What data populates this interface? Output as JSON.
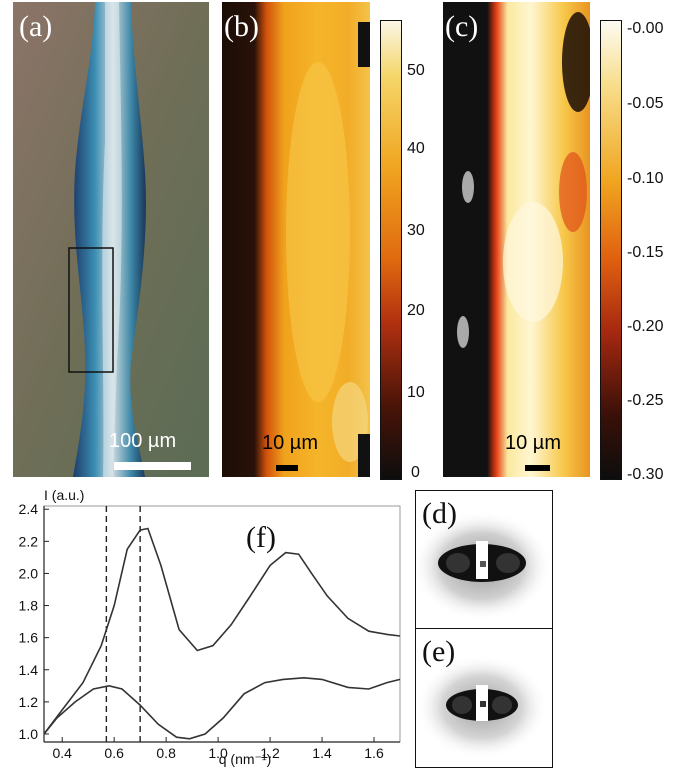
{
  "figure": {
    "panel_a": {
      "letter": "(a)",
      "scale_label": "100 µm"
    },
    "panel_b": {
      "letter": "(b)",
      "scale_label": "10 µm",
      "colorbar_ticks": [
        "50",
        "40",
        "30",
        "20",
        "10",
        "0"
      ]
    },
    "panel_c": {
      "letter": "(c)",
      "scale_label": "10 µm",
      "colorbar_ticks": [
        "-0.00",
        "-0.05",
        "-0.10",
        "-0.15",
        "-0.20",
        "-0.25",
        "-0.30"
      ]
    },
    "panel_d": {
      "letter": "(d)"
    },
    "panel_e": {
      "letter": "(e)"
    },
    "panel_f": {
      "letter": "(f)"
    }
  },
  "chart_data": {
    "type": "line",
    "ylabel": "I (a.u.)",
    "xlabel": "q (nm⁻¹)",
    "xlim": [
      0.33,
      1.7
    ],
    "ylim": [
      0.95,
      2.42
    ],
    "xticks": [
      0.4,
      0.6,
      0.8,
      1.0,
      1.2,
      1.4,
      1.6
    ],
    "yticks": [
      1.0,
      1.2,
      1.4,
      1.6,
      1.8,
      2.0,
      2.2,
      2.4
    ],
    "xtick_labels": [
      "0.4",
      "0.6",
      "0.8",
      "1.0",
      "1.2",
      "1.4",
      "1.6"
    ],
    "ytick_labels": [
      "1.0",
      "1.2",
      "1.4",
      "1.6",
      "1.8",
      "2.0",
      "2.2",
      "2.4"
    ],
    "vlines": [
      0.57,
      0.7
    ],
    "series": [
      {
        "x": [
          0.33,
          0.4,
          0.48,
          0.55,
          0.6,
          0.65,
          0.7,
          0.73,
          0.78,
          0.85,
          0.92,
          0.98,
          1.05,
          1.12,
          1.2,
          1.26,
          1.31,
          1.36,
          1.42,
          1.5,
          1.58,
          1.65,
          1.7
        ],
        "y": [
          1.0,
          1.15,
          1.32,
          1.55,
          1.8,
          2.15,
          2.27,
          2.28,
          2.05,
          1.65,
          1.52,
          1.55,
          1.68,
          1.85,
          2.05,
          2.13,
          2.12,
          2.0,
          1.86,
          1.72,
          1.64,
          1.62,
          1.61
        ]
      },
      {
        "x": [
          0.33,
          0.38,
          0.45,
          0.52,
          0.58,
          0.63,
          0.7,
          0.77,
          0.84,
          0.89,
          0.95,
          1.02,
          1.1,
          1.18,
          1.25,
          1.33,
          1.4,
          1.5,
          1.58,
          1.65,
          1.7
        ],
        "y": [
          1.0,
          1.1,
          1.2,
          1.28,
          1.3,
          1.28,
          1.18,
          1.06,
          0.98,
          0.97,
          1.0,
          1.1,
          1.25,
          1.32,
          1.34,
          1.35,
          1.34,
          1.29,
          1.28,
          1.32,
          1.34
        ]
      }
    ]
  }
}
